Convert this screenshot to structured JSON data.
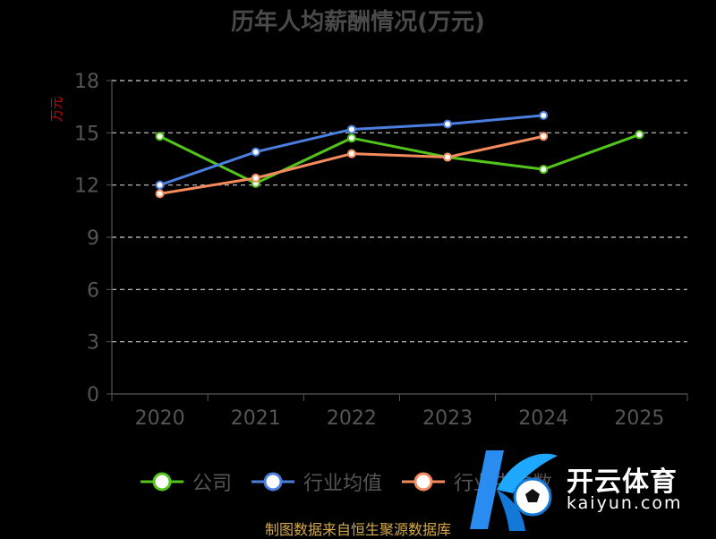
{
  "chart_data": {
    "type": "line",
    "title": "历年人均薪酬情况(万元)",
    "ylabel": "万元",
    "xlabel": "",
    "categories": [
      "2020",
      "2021",
      "2022",
      "2023",
      "2024",
      "2025"
    ],
    "ylim": [
      0,
      18
    ],
    "yticks": [
      0,
      3,
      6,
      9,
      12,
      15,
      18
    ],
    "grid": true,
    "legend_position": "bottom",
    "series": [
      {
        "name": "公司",
        "color": "#52c41a",
        "values": [
          14.8,
          12.1,
          14.7,
          13.6,
          12.9,
          14.9
        ]
      },
      {
        "name": "行业均值",
        "color": "#4a7fe0",
        "values": [
          12.0,
          13.9,
          15.2,
          15.5,
          16.0,
          null
        ]
      },
      {
        "name": "行业中位数",
        "color": "#f58a5c",
        "values": [
          11.5,
          12.4,
          13.8,
          13.6,
          14.8,
          null
        ]
      }
    ]
  },
  "legend_visible_labels": [
    "公司",
    "行业均值",
    "行业中位数"
  ],
  "source_note": "制图数据来自恒生聚源数据库",
  "watermark": {
    "text": "开云体育",
    "subtext": "kaiyun.com",
    "logo_icon": "ky-soccer-logo-icon"
  }
}
